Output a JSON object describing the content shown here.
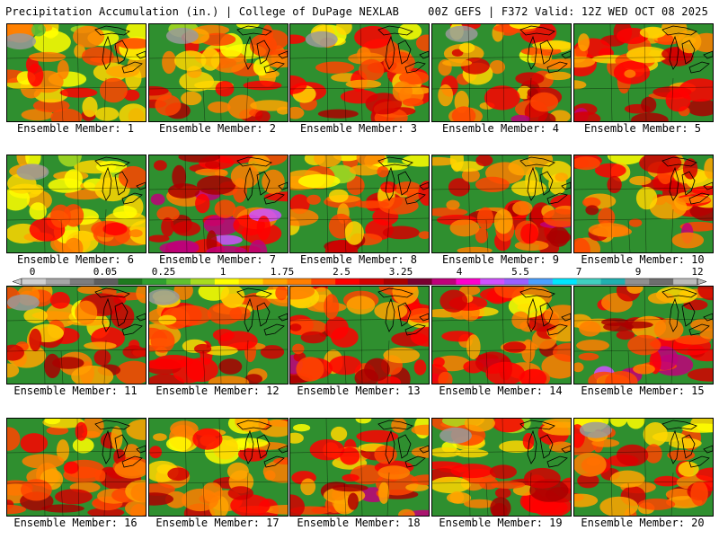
{
  "header": {
    "title_left": "Precipitation Accumulation (in.) | College of DuPage NEXLAB",
    "title_right": "00Z GEFS | F372 Valid: 12Z WED OCT 08 2025"
  },
  "panels": [
    {
      "label": "Ensemble Member: 1"
    },
    {
      "label": "Ensemble Member: 2"
    },
    {
      "label": "Ensemble Member: 3"
    },
    {
      "label": "Ensemble Member: 4"
    },
    {
      "label": "Ensemble Member: 5"
    },
    {
      "label": "Ensemble Member: 6"
    },
    {
      "label": "Ensemble Member: 7"
    },
    {
      "label": "Ensemble Member: 8"
    },
    {
      "label": "Ensemble Member: 9"
    },
    {
      "label": "Ensemble Member: 10"
    },
    {
      "label": "Ensemble Member: 11"
    },
    {
      "label": "Ensemble Member: 12"
    },
    {
      "label": "Ensemble Member: 13"
    },
    {
      "label": "Ensemble Member: 14"
    },
    {
      "label": "Ensemble Member: 15"
    },
    {
      "label": "Ensemble Member: 16"
    },
    {
      "label": "Ensemble Member: 17"
    },
    {
      "label": "Ensemble Member: 18"
    },
    {
      "label": "Ensemble Member: 19"
    },
    {
      "label": "Ensemble Member: 20"
    }
  ],
  "legend": {
    "ticks": [
      "0",
      "0.05",
      "0.25",
      "1",
      "1.75",
      "2.5",
      "3.25",
      "4",
      "5.5",
      "7",
      "9",
      "12"
    ],
    "colors": [
      "#d0d0d0",
      "#a6a6a6",
      "#7d7d7d",
      "#5e5e5e",
      "#1e7a1e",
      "#2fa02f",
      "#60c030",
      "#a8dc20",
      "#ffff00",
      "#ffd700",
      "#ffa500",
      "#ff7f00",
      "#ff4500",
      "#ff0000",
      "#d40000",
      "#aa0000",
      "#7a0030",
      "#c0007a",
      "#ff00cc",
      "#d050ff",
      "#9a60ff",
      "#4aa0ff",
      "#00e6ff",
      "#40d0c0",
      "#20b0b0",
      "#909090",
      "#6e6e6e",
      "#bbbbbb"
    ]
  }
}
